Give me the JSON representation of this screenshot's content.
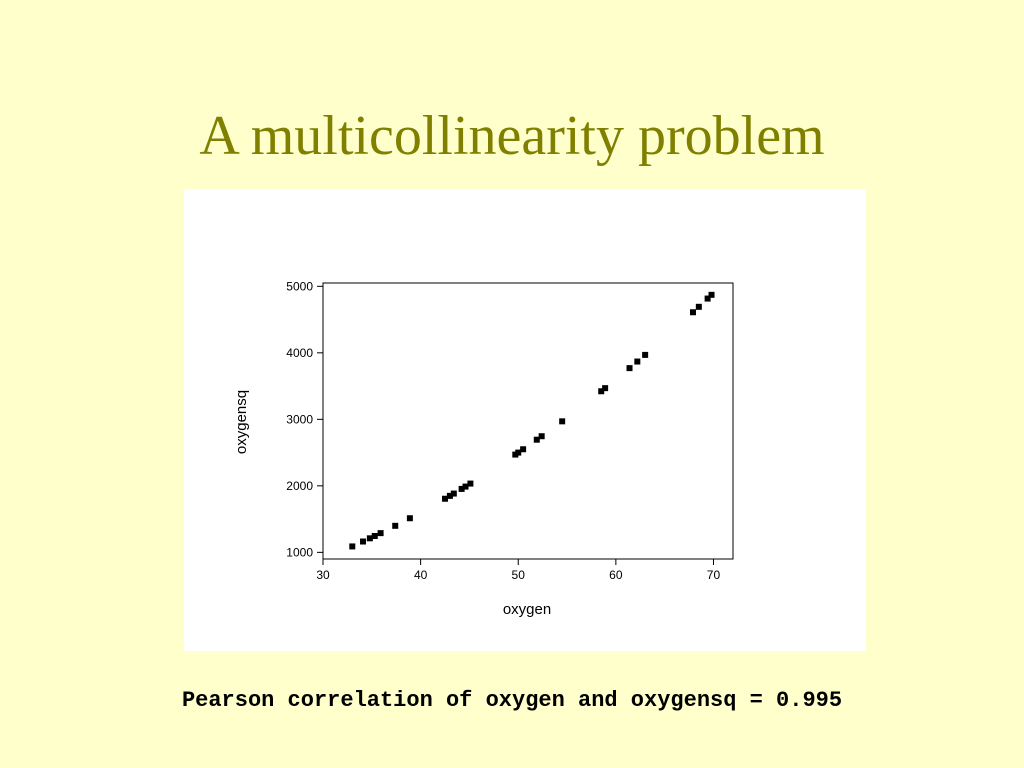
{
  "slide": {
    "title": "A multicollinearity problem",
    "caption": "Pearson correlation of oxygen and oxygensq = 0.995"
  },
  "colors": {
    "background": "#ffffcc",
    "title": "#808000",
    "panel": "#ffffff",
    "points": "#000000"
  },
  "chart_data": {
    "type": "scatter",
    "xlabel": "oxygen",
    "ylabel": "oxygensq",
    "xlim": [
      30,
      72
    ],
    "ylim": [
      900,
      5050
    ],
    "xticks": [
      30,
      40,
      50,
      60,
      70
    ],
    "yticks": [
      1000,
      2000,
      3000,
      4000,
      5000
    ],
    "grid": false,
    "marker": "square",
    "points": [
      {
        "x": 33.0,
        "y": 1089
      },
      {
        "x": 34.1,
        "y": 1163
      },
      {
        "x": 34.8,
        "y": 1211
      },
      {
        "x": 35.3,
        "y": 1246
      },
      {
        "x": 35.9,
        "y": 1289
      },
      {
        "x": 37.4,
        "y": 1399
      },
      {
        "x": 38.9,
        "y": 1513
      },
      {
        "x": 42.5,
        "y": 1806
      },
      {
        "x": 43.0,
        "y": 1849
      },
      {
        "x": 43.4,
        "y": 1884
      },
      {
        "x": 44.2,
        "y": 1954
      },
      {
        "x": 44.6,
        "y": 1989
      },
      {
        "x": 45.1,
        "y": 2034
      },
      {
        "x": 49.7,
        "y": 2470
      },
      {
        "x": 50.0,
        "y": 2500
      },
      {
        "x": 50.5,
        "y": 2550
      },
      {
        "x": 51.9,
        "y": 2694
      },
      {
        "x": 52.4,
        "y": 2746
      },
      {
        "x": 54.5,
        "y": 2970
      },
      {
        "x": 58.5,
        "y": 3422
      },
      {
        "x": 58.9,
        "y": 3469
      },
      {
        "x": 61.4,
        "y": 3770
      },
      {
        "x": 62.2,
        "y": 3869
      },
      {
        "x": 63.0,
        "y": 3969
      },
      {
        "x": 67.9,
        "y": 4610
      },
      {
        "x": 68.5,
        "y": 4692
      },
      {
        "x": 69.4,
        "y": 4816
      },
      {
        "x": 69.8,
        "y": 4872
      }
    ]
  }
}
